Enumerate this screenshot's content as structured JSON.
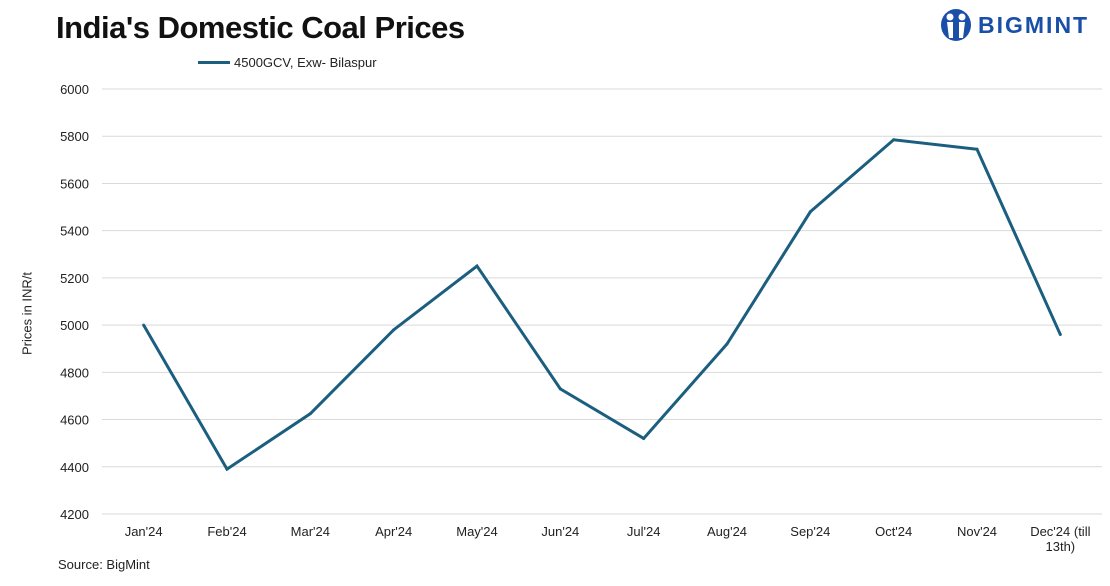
{
  "chart_data": {
    "type": "line",
    "title": "India's Domestic Coal Prices",
    "ylabel": "Prices in INR/t",
    "xlabel": "",
    "categories": [
      "Jan'24",
      "Feb'24",
      "Mar'24",
      "Apr'24",
      "May'24",
      "Jun'24",
      "Jul'24",
      "Aug'24",
      "Sep'24",
      "Oct'24",
      "Nov'24",
      "Dec'24 (till 13th)"
    ],
    "series": [
      {
        "name": "4500GCV, Exw- Bilaspur",
        "color": "#1b5e7f",
        "values": [
          5000,
          4390,
          4625,
          4980,
          5250,
          4730,
          4520,
          4920,
          5480,
          5785,
          5745,
          4960
        ]
      }
    ],
    "ylim": [
      4200,
      6000
    ],
    "yticks": [
      4200,
      4400,
      4600,
      4800,
      5000,
      5200,
      5400,
      5600,
      5800,
      6000
    ],
    "grid": true,
    "legend_position": "top-left"
  },
  "source": "Source: BigMint",
  "logo": {
    "text": "BIGMINT",
    "color": "#1a4fa8"
  }
}
